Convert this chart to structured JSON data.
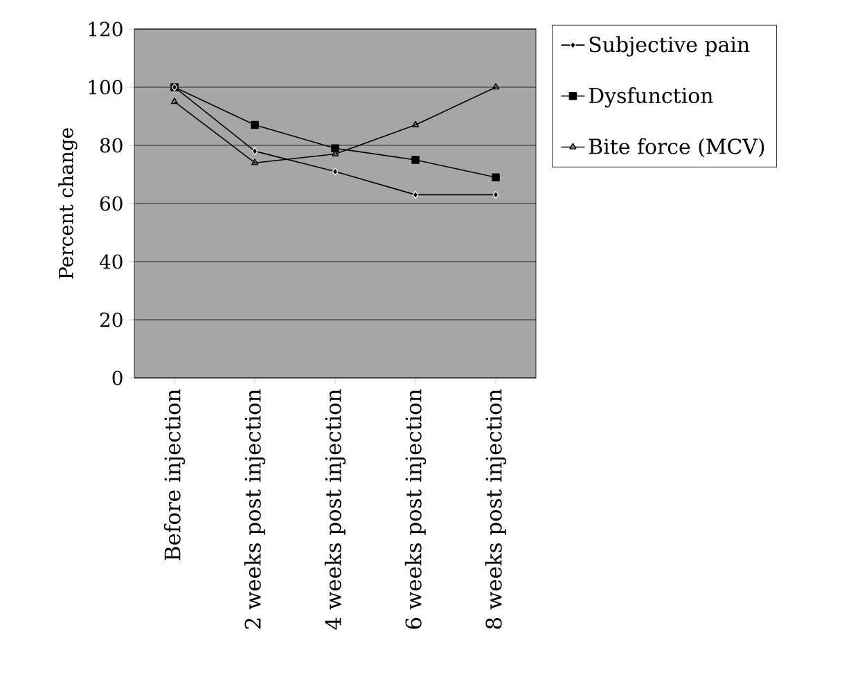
{
  "chart_data": {
    "type": "line",
    "ylabel": "Percent change",
    "categories": [
      "Before injection",
      "2 weeks post injection",
      "4 weeks post injection",
      "6 weeks post injection",
      "8 weeks post injection"
    ],
    "series": [
      {
        "name": "Subjective pain",
        "color": "#000000",
        "marker": "diamond",
        "values": [
          100,
          78,
          71,
          63,
          63
        ]
      },
      {
        "name": "Dysfunction",
        "color": "#000000",
        "marker": "square",
        "values": [
          100,
          87,
          79,
          75,
          69
        ]
      },
      {
        "name": "Bite force (MCV)",
        "color": "#000000",
        "marker": "triangle",
        "values": [
          95,
          74,
          77,
          87,
          100
        ]
      }
    ],
    "ylim": [
      0,
      120
    ],
    "yticks": [
      0,
      20,
      40,
      60,
      80,
      100,
      120
    ],
    "grid": "y",
    "legend": "top right"
  }
}
